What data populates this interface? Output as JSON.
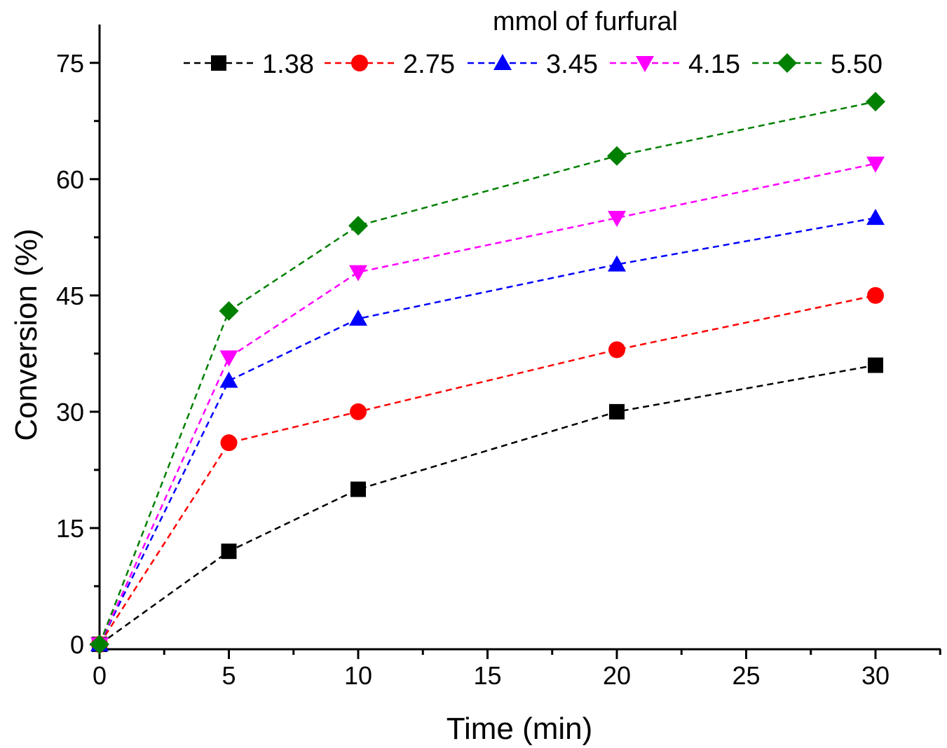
{
  "chart_data": {
    "type": "line",
    "title": "",
    "xlabel": "Time (min)",
    "ylabel": "Conversion (%)",
    "xlim": [
      0,
      32.5
    ],
    "ylim": [
      0,
      80
    ],
    "xticks": [
      0,
      5,
      10,
      15,
      20,
      25,
      30
    ],
    "yticks": [
      0,
      15,
      30,
      45,
      60,
      75
    ],
    "grid": false,
    "legend": {
      "title": "mmol of furfural",
      "placement": "top",
      "style": "dashed lines with markers"
    },
    "x": [
      0,
      5,
      10,
      20,
      30
    ],
    "series": [
      {
        "name": "1.38",
        "color": "#000000",
        "marker": "square",
        "values": [
          0,
          12,
          20,
          30,
          36
        ]
      },
      {
        "name": "2.75",
        "color": "#ff0000",
        "marker": "circle",
        "values": [
          0,
          26,
          30,
          38,
          45
        ]
      },
      {
        "name": "3.45",
        "color": "#0000ff",
        "marker": "triangle-up",
        "values": [
          0,
          34,
          42,
          49,
          55
        ]
      },
      {
        "name": "4.15",
        "color": "#ff00ff",
        "marker": "triangle-down",
        "values": [
          0,
          37,
          48,
          55,
          62
        ]
      },
      {
        "name": "5.50",
        "color": "#008000",
        "marker": "diamond",
        "values": [
          0,
          43,
          54,
          63,
          70
        ]
      }
    ]
  }
}
